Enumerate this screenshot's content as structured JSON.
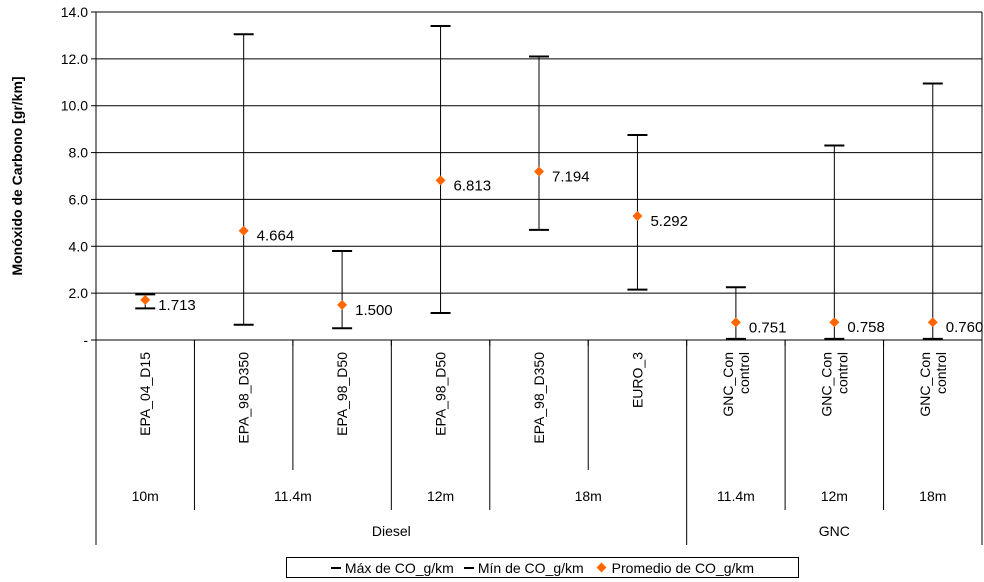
{
  "chart_data": {
    "type": "error-bar",
    "ylabel": "Monóxido de Carbono [gr/km]",
    "ylim": [
      0,
      14
    ],
    "y_ticks": [
      {
        "value": 0,
        "label": "-"
      },
      {
        "value": 2,
        "label": "2.0"
      },
      {
        "value": 4,
        "label": "4.0"
      },
      {
        "value": 6,
        "label": "6.0"
      },
      {
        "value": 8,
        "label": "8.0"
      },
      {
        "value": 10,
        "label": "10.0"
      },
      {
        "value": 12,
        "label": "12.0"
      },
      {
        "value": 14,
        "label": "14.0"
      }
    ],
    "grid": "horizontal",
    "legend_position": "bottom",
    "categories": [
      {
        "label": [
          "EPA_04_D15"
        ],
        "max": 1.95,
        "min": 1.35,
        "avg": 1.713,
        "avg_label": "1.713"
      },
      {
        "label": [
          "EPA_98_D350"
        ],
        "max": 13.05,
        "min": 0.65,
        "avg": 4.664,
        "avg_label": "4.664"
      },
      {
        "label": [
          "EPA_98_D50"
        ],
        "max": 3.8,
        "min": 0.5,
        "avg": 1.5,
        "avg_label": "1.500"
      },
      {
        "label": [
          "EPA_98_D50"
        ],
        "max": 13.4,
        "min": 1.15,
        "avg": 6.813,
        "avg_label": "6.813"
      },
      {
        "label": [
          "EPA_98_D350"
        ],
        "max": 12.1,
        "min": 4.7,
        "avg": 7.194,
        "avg_label": "7.194"
      },
      {
        "label": [
          "EURO_3"
        ],
        "max": 8.75,
        "min": 2.15,
        "avg": 5.292,
        "avg_label": "5.292"
      },
      {
        "label": [
          "GNC_Con",
          "control"
        ],
        "max": 2.25,
        "min": 0.05,
        "avg": 0.751,
        "avg_label": "0.751"
      },
      {
        "label": [
          "GNC_Con",
          "control"
        ],
        "max": 8.3,
        "min": 0.05,
        "avg": 0.758,
        "avg_label": "0.758"
      },
      {
        "label": [
          "GNC_Con",
          "control"
        ],
        "max": 10.95,
        "min": 0.05,
        "avg": 0.76,
        "avg_label": "0.760"
      }
    ],
    "length_groups": [
      {
        "label": "10m",
        "start": 0,
        "end": 0
      },
      {
        "label": "11.4m",
        "start": 1,
        "end": 2
      },
      {
        "label": "12m",
        "start": 3,
        "end": 3
      },
      {
        "label": "18m",
        "start": 4,
        "end": 5
      },
      {
        "label": "11.4m",
        "start": 6,
        "end": 6
      },
      {
        "label": "12m",
        "start": 7,
        "end": 7
      },
      {
        "label": "18m",
        "start": 8,
        "end": 8
      }
    ],
    "fuel_groups": [
      {
        "label": "Diesel",
        "start": 0,
        "end": 5
      },
      {
        "label": "GNC",
        "start": 6,
        "end": 8
      }
    ],
    "series": [
      {
        "name": "Máx de CO_g/km",
        "color": "#000000"
      },
      {
        "name": "Mín de CO_g/km",
        "color": "#000000"
      },
      {
        "name": "Promedio de CO_g/km",
        "color": "#ff6600"
      }
    ]
  }
}
